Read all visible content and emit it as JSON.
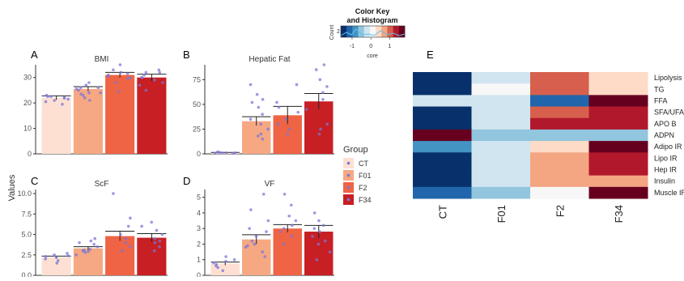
{
  "chart_data": [
    {
      "type": "bar",
      "panel": "A",
      "title": "BMI",
      "ylabel": "Values",
      "categories": [
        "CT",
        "F01",
        "F2",
        "F34"
      ],
      "values": [
        22,
        25.5,
        31,
        30
      ],
      "errors": [
        0.8,
        0.9,
        1.0,
        1.3
      ],
      "ylim": [
        0,
        35
      ],
      "yticks": [
        0,
        10,
        20,
        30
      ],
      "points": [
        [
          19.5,
          20.5,
          21,
          22,
          22.5,
          22,
          23,
          21.5,
          22.5
        ],
        [
          21,
          22,
          23,
          24,
          25,
          25.5,
          26,
          26,
          27,
          24,
          23.5,
          28
        ],
        [
          24.5,
          28,
          30,
          31,
          31.5,
          30.5,
          32,
          33,
          35,
          29.5
        ],
        [
          25,
          28,
          29,
          30,
          31,
          32,
          33,
          27,
          30,
          32
        ]
      ]
    },
    {
      "type": "bar",
      "panel": "B",
      "title": "Hepatic Fat",
      "categories": [
        "CT",
        "F01",
        "F2",
        "F34"
      ],
      "values": [
        1,
        33,
        39,
        53
      ],
      "errors": [
        0.4,
        4.5,
        9,
        8
      ],
      "ylim": [
        0,
        90
      ],
      "yticks": [
        0,
        25,
        50,
        75
      ],
      "points": [
        [
          0.5,
          1,
          1,
          1.5,
          2,
          0.5,
          1
        ],
        [
          15,
          18,
          20,
          25,
          30,
          35,
          40,
          47,
          52,
          55,
          60,
          70
        ],
        [
          20,
          25,
          30,
          35,
          42,
          47,
          52,
          70
        ],
        [
          20,
          25,
          30,
          45,
          55,
          62,
          68,
          75,
          85,
          90
        ]
      ]
    },
    {
      "type": "bar",
      "panel": "C",
      "title": "ScF",
      "categories": [
        "CT",
        "F01",
        "F2",
        "F34"
      ],
      "values": [
        2.2,
        3.3,
        4.8,
        4.6
      ],
      "errors": [
        0.15,
        0.2,
        0.6,
        0.5
      ],
      "ylim": [
        0,
        10.5
      ],
      "yticks": [
        "0.0",
        "2.5",
        "5.0",
        "7.5",
        "10.0"
      ],
      "points": [
        [
          1.5,
          1.8,
          2,
          2.2,
          2.4,
          2.5,
          2.7,
          2.3
        ],
        [
          2.5,
          2.8,
          3,
          3.2,
          3.5,
          3.8,
          4,
          4.2,
          4.5,
          3.1,
          2.9
        ],
        [
          3,
          3.5,
          4,
          4.5,
          5,
          6,
          7,
          10
        ],
        [
          3,
          3.5,
          4,
          4.5,
          5,
          5.5,
          6,
          6.5,
          4.2
        ]
      ]
    },
    {
      "type": "bar",
      "panel": "D",
      "title": "VF",
      "categories": [
        "CT",
        "F01",
        "F2",
        "F34"
      ],
      "values": [
        0.75,
        2.3,
        3.0,
        2.8
      ],
      "errors": [
        0.1,
        0.3,
        0.25,
        0.4
      ],
      "ylim": [
        0,
        5.5
      ],
      "yticks": [
        0,
        1,
        2,
        3,
        4,
        5
      ],
      "points": [
        [
          0.3,
          0.5,
          0.7,
          0.8,
          0.9,
          1,
          1.2,
          0.6
        ],
        [
          1.2,
          1.5,
          1.8,
          2,
          2.2,
          2.5,
          2.8,
          3,
          3.5,
          4.2,
          5.2,
          1.9
        ],
        [
          2,
          2.5,
          2.8,
          3,
          3.2,
          3.5,
          3.8,
          4.5,
          5.2
        ],
        [
          1,
          1.5,
          2,
          2.5,
          2.8,
          3,
          3.2,
          3.5,
          4,
          2.2
        ]
      ]
    },
    {
      "type": "heatmap",
      "panel": "E",
      "columns": [
        "CT",
        "F01",
        "F2",
        "F34"
      ],
      "rows": [
        "Lipolysis",
        "TG",
        "FFA",
        "SFA/UFA",
        "APO B",
        "ADPN",
        "Adipo IR",
        "Lipo IR",
        "Hep IR",
        "Insulin",
        "Muscle IR"
      ],
      "values": [
        [
          -1.5,
          -0.2,
          0.9,
          0.5
        ],
        [
          -1.5,
          0,
          0.9,
          0.5
        ],
        [
          -0.1,
          -0.2,
          -1.2,
          1.6
        ],
        [
          -1.5,
          -0.2,
          0.9,
          1.2
        ],
        [
          -1.5,
          -0.1,
          1.2,
          1.4
        ],
        [
          1.6,
          -0.6,
          -0.6,
          -0.6
        ],
        [
          -0.9,
          -0.2,
          0.3,
          1.7
        ],
        [
          -1.5,
          -0.2,
          0.6,
          1.2
        ],
        [
          -1.5,
          -0.1,
          0.6,
          1.2
        ],
        [
          -1.5,
          -0.1,
          0.8,
          0.8
        ],
        [
          -1.2,
          -0.5,
          0.2,
          1.8
        ]
      ],
      "color_key": {
        "title": "Color Key",
        "subtitle": "and Histogram",
        "ylabel": "Count",
        "xlabel": "core",
        "count_tick": "2",
        "ticks": [
          "-1",
          "0",
          "1"
        ],
        "range": [
          -1.6,
          1.8
        ],
        "colors": [
          "#08306b",
          "#2166ac",
          "#4393c3",
          "#92c5de",
          "#d1e5f0",
          "#f7f7f7",
          "#fddbc7",
          "#f4a582",
          "#d6604d",
          "#b2182b",
          "#67001f"
        ]
      }
    }
  ],
  "legend": {
    "title": "Group",
    "items": [
      {
        "label": "CT",
        "color": "#fde0d2"
      },
      {
        "label": "F01",
        "color": "#f6a883"
      },
      {
        "label": "F2",
        "color": "#ef6445"
      },
      {
        "label": "F34",
        "color": "#c71f24"
      }
    ]
  },
  "point_color": "#7b75d8",
  "panel_letters": [
    "A",
    "B",
    "C",
    "D",
    "E"
  ]
}
